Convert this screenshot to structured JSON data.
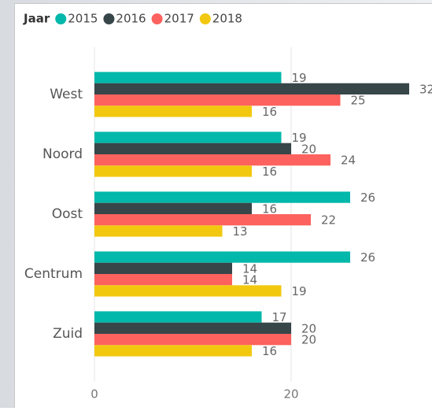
{
  "chart_data": {
    "type": "hbar",
    "legend_title": "Jaar",
    "categories": [
      "West",
      "Noord",
      "Oost",
      "Centrum",
      "Zuid"
    ],
    "series": [
      {
        "name": "2015",
        "color": "#01B8AA",
        "values": [
          19,
          19,
          26,
          26,
          17
        ]
      },
      {
        "name": "2016",
        "color": "#374649",
        "values": [
          32,
          20,
          16,
          14,
          20
        ]
      },
      {
        "name": "2017",
        "color": "#FD625E",
        "values": [
          25,
          24,
          22,
          14,
          20
        ]
      },
      {
        "name": "2018",
        "color": "#F2C80F",
        "values": [
          16,
          16,
          13,
          19,
          16
        ]
      }
    ],
    "xlim": [
      0,
      34
    ],
    "xticks": [
      0,
      20
    ],
    "grid": true,
    "legend": "top-left"
  }
}
